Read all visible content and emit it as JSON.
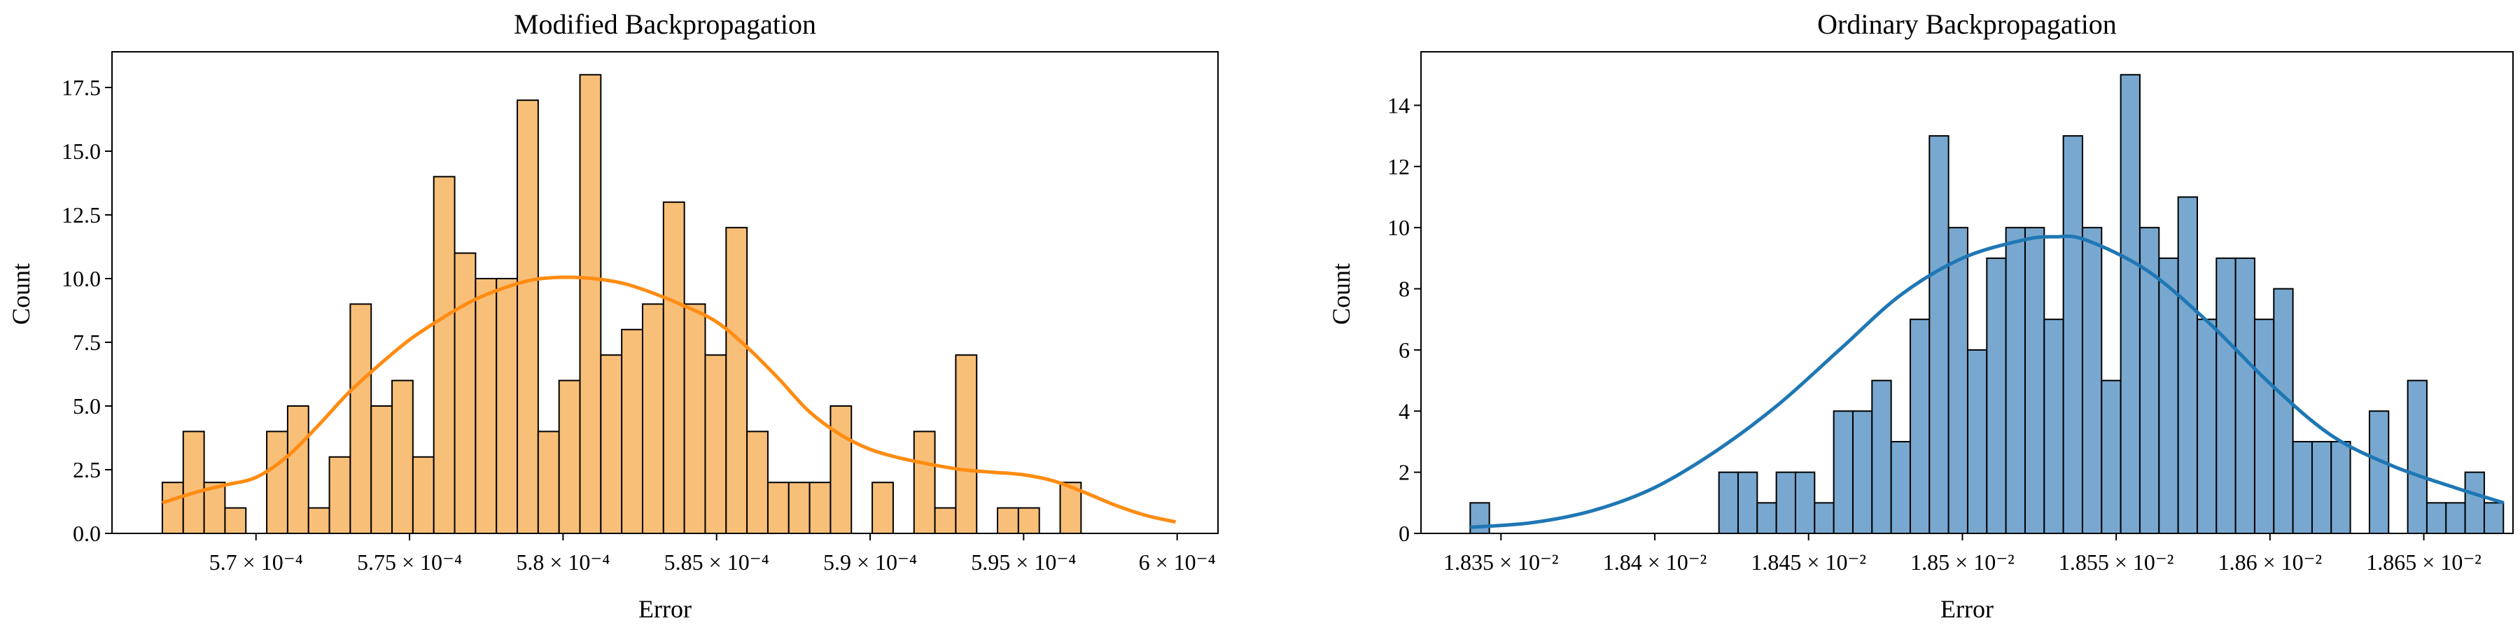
{
  "chart_data": [
    {
      "type": "bar",
      "title": "Modified Backpropagation",
      "xlabel": "Error",
      "ylabel": "Count",
      "bar_color": "#f8bf78",
      "kde_color": "#ff8c12",
      "xlim": [
        5.6531,
        6.0133
      ],
      "ylim": [
        0,
        18.9
      ],
      "xticks": [
        {
          "value": 5.7,
          "label": "5.7 × 10⁻⁴"
        },
        {
          "value": 5.75,
          "label": "5.75 × 10⁻⁴"
        },
        {
          "value": 5.8,
          "label": "5.8 × 10⁻⁴"
        },
        {
          "value": 5.85,
          "label": "5.85 × 10⁻⁴"
        },
        {
          "value": 5.9,
          "label": "5.9 × 10⁻⁴"
        },
        {
          "value": 5.95,
          "label": "5.95 × 10⁻⁴"
        },
        {
          "value": 6.0,
          "label": "6 × 10⁻⁴"
        }
      ],
      "yticks": [
        {
          "value": 0,
          "label": "0.0"
        },
        {
          "value": 2.5,
          "label": "2.5"
        },
        {
          "value": 5,
          "label": "5.0"
        },
        {
          "value": 7.5,
          "label": "7.5"
        },
        {
          "value": 10,
          "label": "10.0"
        },
        {
          "value": 12.5,
          "label": "12.5"
        },
        {
          "value": 15,
          "label": "15.0"
        },
        {
          "value": 17.5,
          "label": "17.5"
        }
      ],
      "bin_start": 5.6695,
      "bin_width": 0.0068,
      "counts": [
        2,
        4,
        2,
        1,
        0,
        4,
        5,
        1,
        3,
        9,
        5,
        6,
        3,
        14,
        11,
        10,
        10,
        17,
        4,
        6,
        18,
        7,
        8,
        9,
        13,
        9,
        7,
        12,
        4,
        2,
        2,
        2,
        5,
        0,
        2,
        0,
        4,
        1,
        7,
        0,
        1,
        1,
        0,
        2
      ],
      "kde_x": [
        5.6695,
        5.68,
        5.69,
        5.7,
        5.71,
        5.72,
        5.73,
        5.74,
        5.75,
        5.76,
        5.77,
        5.78,
        5.79,
        5.8,
        5.81,
        5.82,
        5.83,
        5.84,
        5.85,
        5.86,
        5.87,
        5.88,
        5.89,
        5.9,
        5.91,
        5.92,
        5.93,
        5.94,
        5.95,
        5.96,
        5.97,
        5.98,
        5.99,
        5.9995
      ],
      "kde_y": [
        1.2,
        1.6,
        1.9,
        2.2,
        3.0,
        4.2,
        5.5,
        6.6,
        7.6,
        8.4,
        9.1,
        9.6,
        9.95,
        10.05,
        10.0,
        9.8,
        9.4,
        8.9,
        8.3,
        7.3,
        6.1,
        4.8,
        3.9,
        3.3,
        2.95,
        2.7,
        2.5,
        2.4,
        2.3,
        2.05,
        1.6,
        1.1,
        0.7,
        0.45
      ]
    },
    {
      "type": "bar",
      "title": "Ordinary Backpropagation",
      "xlabel": "Error",
      "ylabel": "Count",
      "bar_color": "#78a8d0",
      "kde_color": "#1f77b4",
      "xlim": [
        1.8324,
        1.8679
      ],
      "ylim": [
        0,
        15.75
      ],
      "xticks": [
        {
          "value": 1.835,
          "label": "1.835 × 10⁻²"
        },
        {
          "value": 1.84,
          "label": "1.84 × 10⁻²"
        },
        {
          "value": 1.845,
          "label": "1.845 × 10⁻²"
        },
        {
          "value": 1.85,
          "label": "1.85 × 10⁻²"
        },
        {
          "value": 1.855,
          "label": "1.855 × 10⁻²"
        },
        {
          "value": 1.86,
          "label": "1.86 × 10⁻²"
        },
        {
          "value": 1.865,
          "label": "1.865 × 10⁻²"
        }
      ],
      "yticks": [
        {
          "value": 0,
          "label": "0"
        },
        {
          "value": 2,
          "label": "2"
        },
        {
          "value": 4,
          "label": "4"
        },
        {
          "value": 6,
          "label": "6"
        },
        {
          "value": 8,
          "label": "8"
        },
        {
          "value": 10,
          "label": "10"
        },
        {
          "value": 12,
          "label": "12"
        },
        {
          "value": 14,
          "label": "14"
        }
      ],
      "bin_start": 1.834,
      "bin_width": 0.000622,
      "counts": [
        1,
        0,
        0,
        0,
        0,
        0,
        0,
        0,
        0,
        0,
        0,
        0,
        0,
        2,
        2,
        1,
        2,
        2,
        1,
        4,
        4,
        5,
        3,
        7,
        13,
        10,
        6,
        9,
        10,
        10,
        7,
        13,
        10,
        5,
        15,
        10,
        9,
        11,
        7,
        9,
        9,
        7,
        8,
        3,
        3,
        3,
        0,
        4,
        0,
        5,
        1,
        1,
        2,
        1
      ],
      "kde_x": [
        1.834,
        1.836,
        1.838,
        1.84,
        1.842,
        1.844,
        1.846,
        1.848,
        1.85,
        1.852,
        1.853,
        1.854,
        1.856,
        1.858,
        1.86,
        1.862,
        1.864,
        1.866,
        1.8676
      ],
      "kde_y": [
        0.2,
        0.35,
        0.75,
        1.5,
        2.7,
        4.2,
        6.0,
        7.8,
        9.0,
        9.6,
        9.7,
        9.6,
        8.6,
        6.9,
        4.9,
        3.2,
        2.2,
        1.5,
        1.0
      ]
    }
  ]
}
